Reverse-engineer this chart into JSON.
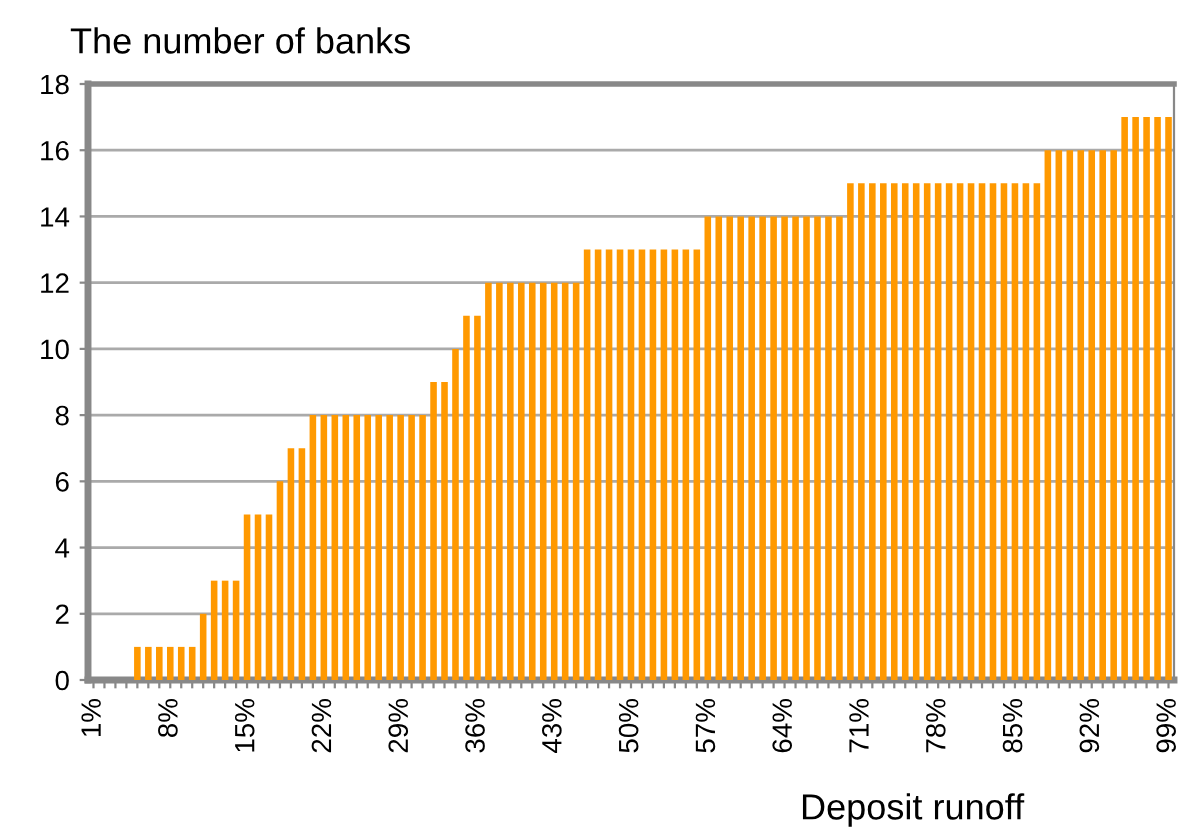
{
  "chart_data": {
    "type": "bar",
    "ylabel": "The number of banks",
    "xlabel": "Deposit runoff",
    "categories": [
      "1%",
      null,
      null,
      null,
      null,
      null,
      null,
      "8%",
      null,
      null,
      null,
      null,
      null,
      null,
      "15%",
      null,
      null,
      null,
      null,
      null,
      null,
      "22%",
      null,
      null,
      null,
      null,
      null,
      null,
      "29%",
      null,
      null,
      null,
      null,
      null,
      null,
      "36%",
      null,
      null,
      null,
      null,
      null,
      null,
      "43%",
      null,
      null,
      null,
      null,
      null,
      null,
      "50%",
      null,
      null,
      null,
      null,
      null,
      null,
      "57%",
      null,
      null,
      null,
      null,
      null,
      null,
      "64%",
      null,
      null,
      null,
      null,
      null,
      null,
      "71%",
      null,
      null,
      null,
      null,
      null,
      null,
      "78%",
      null,
      null,
      null,
      null,
      null,
      null,
      "85%",
      null,
      null,
      null,
      null,
      null,
      null,
      "92%",
      null,
      null,
      null,
      null,
      null,
      null,
      "99%"
    ],
    "values": [
      0,
      0,
      0,
      0,
      1,
      1,
      1,
      1,
      1,
      1,
      2,
      3,
      3,
      3,
      5,
      5,
      5,
      6,
      7,
      7,
      8,
      8,
      8,
      8,
      8,
      8,
      8,
      8,
      8,
      8,
      8,
      9,
      9,
      10,
      11,
      11,
      12,
      12,
      12,
      12,
      12,
      12,
      12,
      12,
      12,
      13,
      13,
      13,
      13,
      13,
      13,
      13,
      13,
      13,
      13,
      13,
      14,
      14,
      14,
      14,
      14,
      14,
      14,
      14,
      14,
      14,
      14,
      14,
      14,
      15,
      15,
      15,
      15,
      15,
      15,
      15,
      15,
      15,
      15,
      15,
      15,
      15,
      15,
      15,
      15,
      15,
      15,
      16,
      16,
      16,
      16,
      16,
      16,
      16,
      17,
      17,
      17,
      17,
      17
    ],
    "color": "#ff9900",
    "ylim": [
      0,
      18
    ],
    "yticks": [
      0,
      2,
      4,
      6,
      8,
      10,
      12,
      14,
      16,
      18
    ],
    "grid": "y"
  }
}
